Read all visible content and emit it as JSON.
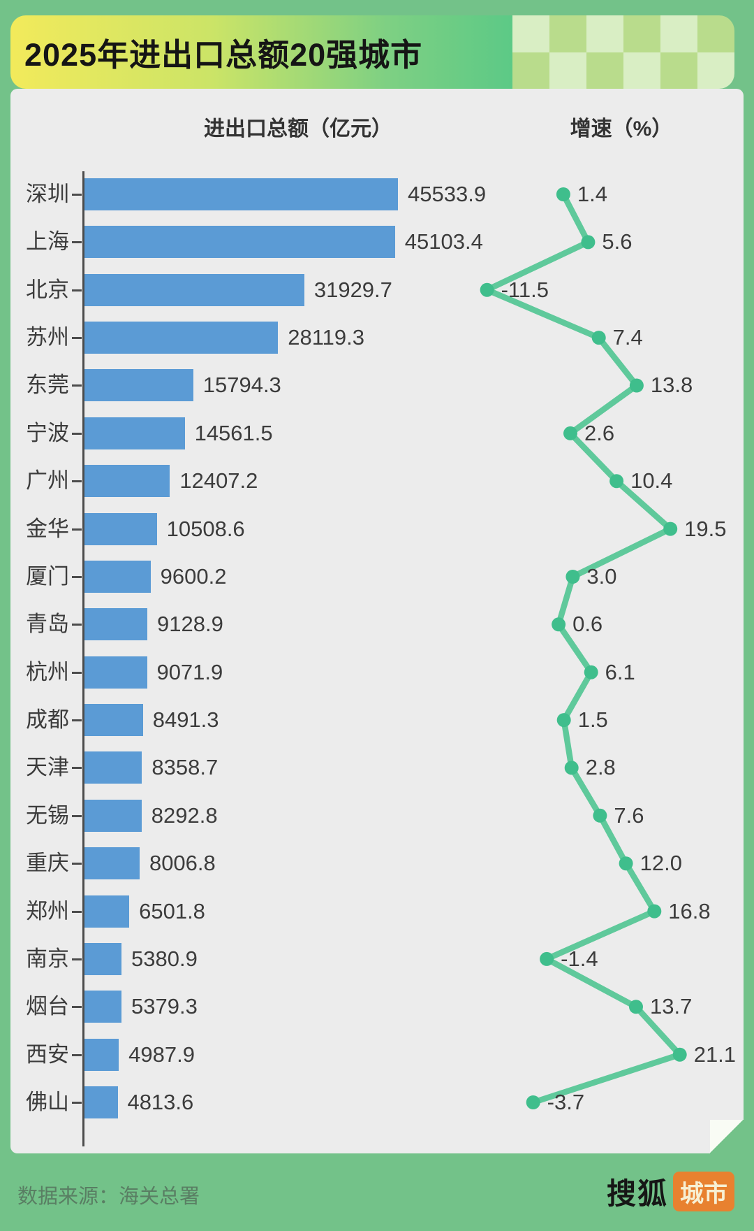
{
  "page": {
    "title": "2025年进出口总额20强城市",
    "source_note": "数据来源：海关总署",
    "brand": {
      "text_left": "搜狐",
      "text_right": "城市"
    }
  },
  "columns": {
    "left_header": "进出口总额（亿元）",
    "right_header": "增速（%）"
  },
  "colors": {
    "page_bg": "#73c289",
    "bar": "#5b9bd5",
    "line": "#5fc99b",
    "dot": "#3fbe8c",
    "text": "#3c3c3c",
    "logo_orange": "#e8812f"
  },
  "chart_data": {
    "type": "bar",
    "orientation": "horizontal",
    "title": "2025年进出口总额20强城市",
    "categories": [
      "深圳",
      "上海",
      "北京",
      "苏州",
      "东莞",
      "宁波",
      "广州",
      "金华",
      "厦门",
      "青岛",
      "杭州",
      "成都",
      "天津",
      "无锡",
      "重庆",
      "郑州",
      "南京",
      "烟台",
      "西安",
      "佛山"
    ],
    "series": [
      {
        "name": "进出口总额（亿元）",
        "type": "bar",
        "values": [
          45533.9,
          45103.4,
          31929.7,
          28119.3,
          15794.3,
          14561.5,
          12407.2,
          10508.6,
          9600.2,
          9128.9,
          9071.9,
          8491.3,
          8358.7,
          8292.8,
          8006.8,
          6501.8,
          5380.9,
          5379.3,
          4987.9,
          4813.6
        ]
      },
      {
        "name": "增速（%）",
        "type": "line",
        "values": [
          1.4,
          5.6,
          -11.5,
          7.4,
          13.8,
          2.6,
          10.4,
          19.5,
          3.0,
          0.6,
          6.1,
          1.5,
          2.8,
          7.6,
          12.0,
          16.8,
          -1.4,
          13.7,
          21.1,
          -3.7
        ]
      }
    ],
    "bar_axis_range": [
      0,
      45533.9
    ],
    "line_axis_range": [
      -11.5,
      21.1
    ],
    "grid": false,
    "legend": false,
    "value_labels": true
  }
}
